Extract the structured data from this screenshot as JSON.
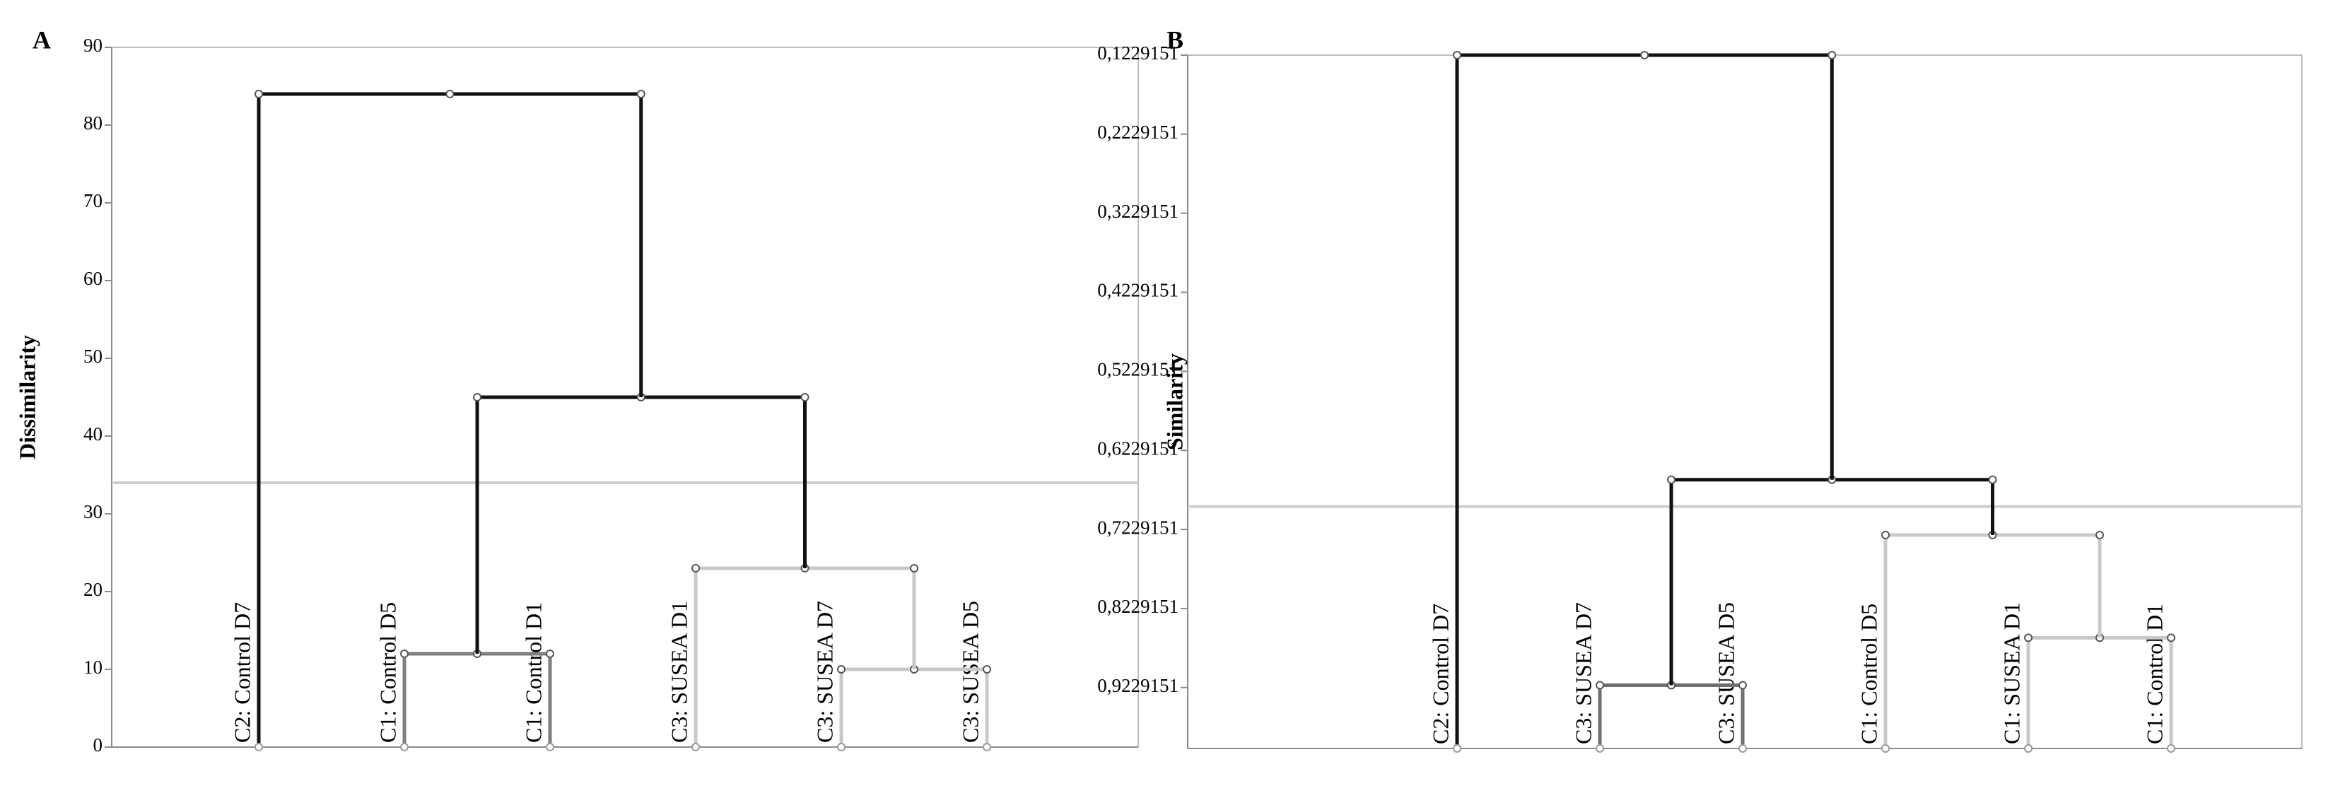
{
  "chart_data": [
    {
      "type": "dendrogram",
      "panel_label": "A",
      "ylabel": "Dissimilarity",
      "leaves": [
        "C2: Control D7",
        "C1: Control D5",
        "C1: Control D1",
        "C3: SUSEA D1",
        "C3: SUSEA D7",
        "C3: SUSEA D5"
      ],
      "merges": [
        {
          "children": [
            1,
            2
          ],
          "height": 12,
          "color": "#7f7f7f"
        },
        {
          "children": [
            4,
            5
          ],
          "height": 10,
          "color": "#c8c8c8"
        },
        {
          "children": [
            3,
            7
          ],
          "height": 23,
          "color": "#c8c8c8"
        },
        {
          "children": [
            6,
            8
          ],
          "height": 45,
          "color": "#111111"
        },
        {
          "children": [
            0,
            9
          ],
          "height": 84,
          "color": "#111111"
        }
      ],
      "threshold": 34,
      "ylim": [
        0,
        90
      ],
      "yticks": [
        0,
        10,
        20,
        30,
        40,
        50,
        60,
        70,
        80,
        90
      ]
    },
    {
      "type": "dendrogram",
      "panel_label": "B",
      "ylabel": "Similarity",
      "leaves": [
        "C2: Control D7",
        "C3: SUSEA D7",
        "C3: SUSEA D5",
        "C1: Control D5",
        "C1: SUSEA D1",
        "C1: Control D1"
      ],
      "merges": [
        {
          "children": [
            1,
            2
          ],
          "height": 0.92,
          "color": "#6f6f6f"
        },
        {
          "children": [
            4,
            5
          ],
          "height": 0.86,
          "color": "#c8c8c8"
        },
        {
          "children": [
            3,
            7
          ],
          "height": 0.73,
          "color": "#c8c8c8"
        },
        {
          "children": [
            6,
            8
          ],
          "height": 0.66,
          "color": "#111111"
        },
        {
          "children": [
            0,
            9
          ],
          "height": 0.1229151,
          "color": "#111111"
        }
      ],
      "threshold": 0.694,
      "ylim": [
        1,
        0.1229151
      ],
      "yticks": [
        {
          "value": 0.1229151,
          "label": "0,1229151"
        },
        {
          "value": 0.2229151,
          "label": "0,2229151"
        },
        {
          "value": 0.3229151,
          "label": "0,3229151"
        },
        {
          "value": 0.4229151,
          "label": "0,4229151"
        },
        {
          "value": 0.5229151,
          "label": "0,5229151"
        },
        {
          "value": 0.6229151,
          "label": "0,6229151"
        },
        {
          "value": 0.7229151,
          "label": "0,7229151"
        },
        {
          "value": 0.8229151,
          "label": "0,8229151"
        },
        {
          "value": 0.9229151,
          "label": "0,9229151"
        }
      ]
    }
  ]
}
